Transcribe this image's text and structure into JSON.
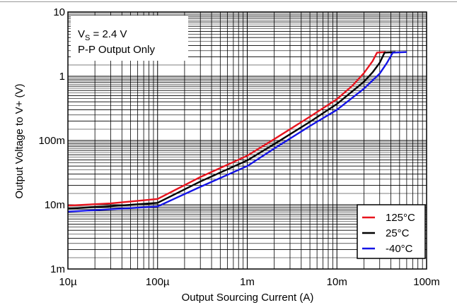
{
  "chart_data": {
    "type": "line",
    "title": "",
    "xlabel": "Output Sourcing Current (A)",
    "ylabel": "Output Voltage to V+ (V)",
    "xscale": "log",
    "yscale": "log",
    "xlim": [
      1e-05,
      0.1
    ],
    "ylim": [
      0.001,
      10
    ],
    "grid": "on (major and minor)",
    "x_ticks": [
      {
        "value": 1e-05,
        "label": "10µ"
      },
      {
        "value": 0.0001,
        "label": "100µ"
      },
      {
        "value": 0.001,
        "label": "1m"
      },
      {
        "value": 0.01,
        "label": "10m"
      },
      {
        "value": 0.1,
        "label": "100m"
      }
    ],
    "y_ticks": [
      {
        "value": 0.001,
        "label": "1m"
      },
      {
        "value": 0.01,
        "label": "10m"
      },
      {
        "value": 0.1,
        "label": "100m"
      },
      {
        "value": 1,
        "label": "1"
      },
      {
        "value": 10,
        "label": "10"
      }
    ],
    "annotation": {
      "line1_main": "V",
      "line1_sub": "S",
      "line1_rest": " = 2.4 V",
      "line2": "P-P Output Only"
    },
    "legend_position": "bottom-right",
    "series": [
      {
        "name": "125°C",
        "color": "#e8141e",
        "points": [
          [
            1e-05,
            0.0097
          ],
          [
            3e-05,
            0.0105
          ],
          [
            0.0001,
            0.0123
          ],
          [
            0.0003,
            0.027
          ],
          [
            0.001,
            0.058
          ],
          [
            0.002,
            0.105
          ],
          [
            0.005,
            0.235
          ],
          [
            0.01,
            0.44
          ],
          [
            0.015,
            0.72
          ],
          [
            0.02,
            1.12
          ],
          [
            0.025,
            1.72
          ],
          [
            0.028,
            2.33
          ],
          [
            0.035,
            2.38
          ]
        ]
      },
      {
        "name": "25°C",
        "color": "#000000",
        "points": [
          [
            1e-05,
            0.0087
          ],
          [
            3e-05,
            0.0095
          ],
          [
            0.0001,
            0.0107
          ],
          [
            0.0003,
            0.023
          ],
          [
            0.001,
            0.049
          ],
          [
            0.002,
            0.088
          ],
          [
            0.005,
            0.195
          ],
          [
            0.01,
            0.37
          ],
          [
            0.02,
            0.82
          ],
          [
            0.025,
            1.15
          ],
          [
            0.03,
            1.62
          ],
          [
            0.034,
            2.33
          ],
          [
            0.045,
            2.38
          ]
        ]
      },
      {
        "name": "-40°C",
        "color": "#1414e6",
        "points": [
          [
            1e-05,
            0.0078
          ],
          [
            3e-05,
            0.0085
          ],
          [
            0.0001,
            0.0094
          ],
          [
            0.0003,
            0.019
          ],
          [
            0.001,
            0.04
          ],
          [
            0.002,
            0.075
          ],
          [
            0.005,
            0.168
          ],
          [
            0.01,
            0.3
          ],
          [
            0.02,
            0.64
          ],
          [
            0.03,
            1.1
          ],
          [
            0.036,
            1.6
          ],
          [
            0.042,
            2.33
          ],
          [
            0.06,
            2.38
          ]
        ]
      }
    ]
  }
}
